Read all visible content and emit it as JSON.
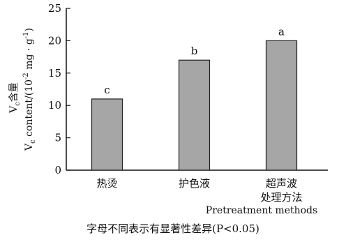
{
  "chart_data": {
    "type": "bar",
    "categories": [
      "热烫",
      "护色液",
      "超声波处理方法"
    ],
    "category_lines": [
      [
        "热烫"
      ],
      [
        "护色液"
      ],
      [
        "超声波",
        "处理方法"
      ]
    ],
    "values": [
      11,
      17,
      20
    ],
    "significance_letters": [
      "c",
      "b",
      "a"
    ],
    "title": "",
    "xlabel": "Pretreatment methods",
    "ylabel_cn": "Vc含量",
    "ylabel_en": "Vc content/(10⁻² mg · g⁻¹)",
    "ylim": [
      0,
      25
    ],
    "yticks": [
      0,
      5,
      10,
      15,
      20,
      25
    ],
    "grid": false,
    "bar_color": "#a6a6a6",
    "bar_edge_color": "#222222"
  },
  "caption": "字母不同表示有显著性差异(P<0.05)"
}
